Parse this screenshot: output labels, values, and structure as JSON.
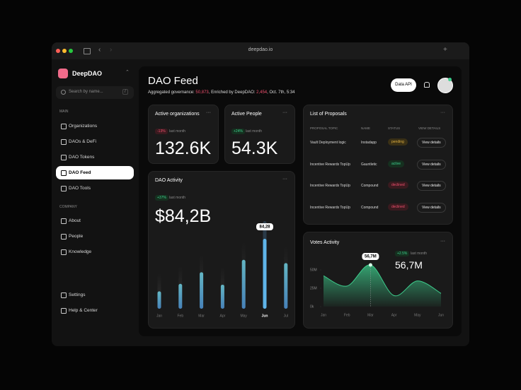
{
  "browser": {
    "url": "deepdao.io"
  },
  "sidebar": {
    "brand": "DeepDAO",
    "search": {
      "placeholder": "Search by name...",
      "shortcut": "/"
    },
    "main_heading": "MAIN",
    "main_items": [
      "Organizations",
      "DAOs & DeFi",
      "DAO Tokens",
      "DAO Feed",
      "DAO Tools"
    ],
    "active_item": "DAO Feed",
    "company_heading": "COMPANY",
    "company_items": [
      "About",
      "People",
      "Knowledge"
    ],
    "bottom_items": [
      "Settings",
      "Help & Center"
    ]
  },
  "header": {
    "title": "DAO Feed",
    "subtitle": [
      "Aggregated governance: ",
      "50,873",
      ", Enriched by DeepDAO: ",
      "2,454",
      ", Oct. 7th, 5:34"
    ],
    "button": "Data API"
  },
  "cards": [
    {
      "title": "Active organizations",
      "change": "-13%",
      "change_note": "last month",
      "value": "132.6K"
    },
    {
      "title": "Active People",
      "change": "+24%",
      "change_note": "last month",
      "value": "54.3K"
    }
  ],
  "proposals": {
    "title": "List of Proposals",
    "columns": [
      "PROPOSAL TOPIC",
      "NAME",
      "STATUS",
      "VIEW DETAILS"
    ],
    "rows": [
      [
        "Vault Deployment logic",
        "Instadapp",
        "pending",
        "View details"
      ],
      [
        "Incentive Rewards TopUp",
        "Gauntletic",
        "active",
        "View details"
      ],
      [
        "Incentive Rewards TopUp",
        "Compound",
        "declined",
        "View details"
      ],
      [
        "Incentive Rewards TopUp",
        "Compound",
        "declined",
        "View details"
      ]
    ]
  },
  "chart_data": [
    {
      "type": "bar",
      "title": "DAO Activity",
      "change": "+37%",
      "change_note": "last month",
      "total": "$84,2B",
      "categories": [
        "Jan",
        "Feb",
        "Mar",
        "Apr",
        "May",
        "Jun",
        "Jul"
      ],
      "values": [
        21,
        30,
        44,
        29,
        59,
        84.28,
        55
      ],
      "value_labels": [
        null,
        null,
        null,
        null,
        null,
        "84,28",
        null
      ],
      "ylim": [
        0,
        90
      ],
      "color": "#5fb4e8"
    },
    {
      "type": "area",
      "title": "Votes Activity",
      "change": "+2.5%",
      "change_note": "last month",
      "total": "56,7M",
      "categories": [
        "Jan",
        "Feb",
        "Mar",
        "Apr",
        "May",
        "Jun"
      ],
      "values": [
        42,
        28,
        56.7,
        15,
        35,
        18
      ],
      "value_labels": [
        null,
        null,
        "56,7M",
        null,
        null,
        null
      ],
      "ylim": [
        0,
        65
      ],
      "yticks": [
        {
          "value": 0,
          "label": "0k"
        },
        {
          "value": 25,
          "label": "25M"
        },
        {
          "value": 50,
          "label": "50M"
        }
      ],
      "color": "#3ecf8e"
    }
  ]
}
